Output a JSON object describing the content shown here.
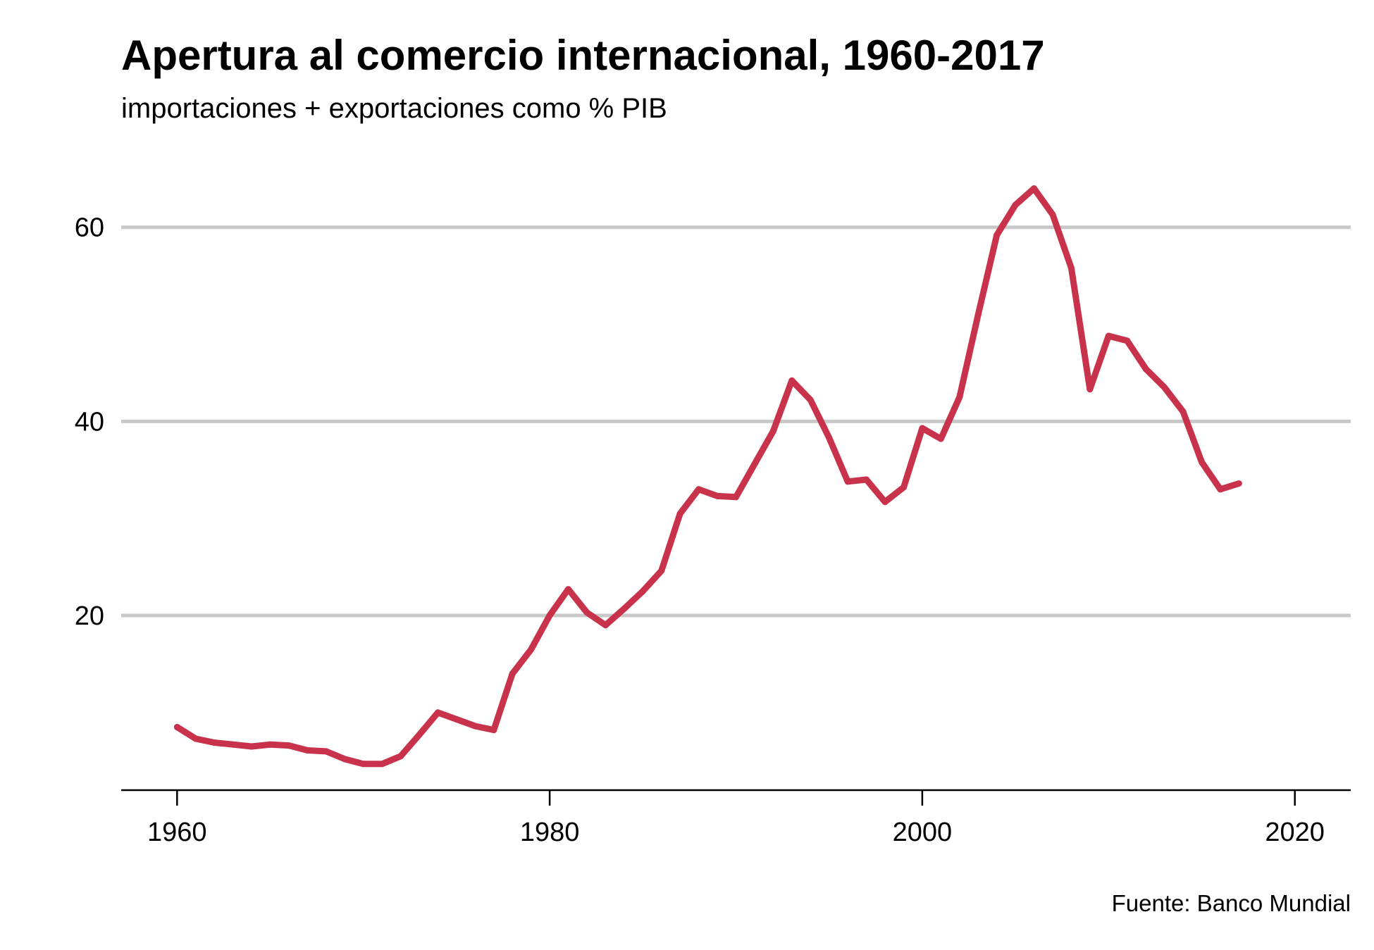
{
  "chart_data": {
    "type": "line",
    "title": "Apertura al comercio internacional, 1960-2017",
    "subtitle": "importaciones + exportaciones como % PIB",
    "source": "Fuente: Banco Mundial",
    "xlabel": "",
    "ylabel": "",
    "xlim": [
      1957,
      2023
    ],
    "ylim": [
      2,
      66
    ],
    "x_ticks": [
      1960,
      1980,
      2000,
      2020
    ],
    "y_ticks": [
      20,
      40,
      60
    ],
    "grid": "horizontal",
    "colors": {
      "line": "#C8324A",
      "grid": "#C8C8C8",
      "axis": "#000000"
    },
    "series": [
      {
        "x": [
          1960,
          1961,
          1962,
          1963,
          1964,
          1965,
          1966,
          1967,
          1968,
          1969,
          1970,
          1971,
          1972,
          1973,
          1974,
          1975,
          1976,
          1977,
          1978,
          1979,
          1980,
          1981,
          1982,
          1983,
          1984,
          1985,
          1986,
          1987,
          1988,
          1989,
          1990,
          1991,
          1992,
          1993,
          1994,
          1995,
          1996,
          1997,
          1998,
          1999,
          2000,
          2001,
          2002,
          2003,
          2004,
          2005,
          2006,
          2007,
          2008,
          2009,
          2010,
          2011,
          2012,
          2013,
          2014,
          2015,
          2016,
          2017
        ],
        "values": [
          8.5,
          7.3,
          6.9,
          6.7,
          6.5,
          6.7,
          6.6,
          6.1,
          6.0,
          5.2,
          4.7,
          4.7,
          5.5,
          7.7,
          10.0,
          9.3,
          8.6,
          8.2,
          14.0,
          16.5,
          20.0,
          22.7,
          20.3,
          19.0,
          20.7,
          22.5,
          24.6,
          30.5,
          33.0,
          32.3,
          32.2,
          35.6,
          39.0,
          44.2,
          42.2,
          38.3,
          33.8,
          34.0,
          31.7,
          33.2,
          39.3,
          38.2,
          42.5,
          51.0,
          59.2,
          62.3,
          64.0,
          61.3,
          55.8,
          43.3,
          48.8,
          48.3,
          45.4,
          43.5,
          41.0,
          35.8,
          33.0,
          33.6
        ]
      }
    ]
  }
}
